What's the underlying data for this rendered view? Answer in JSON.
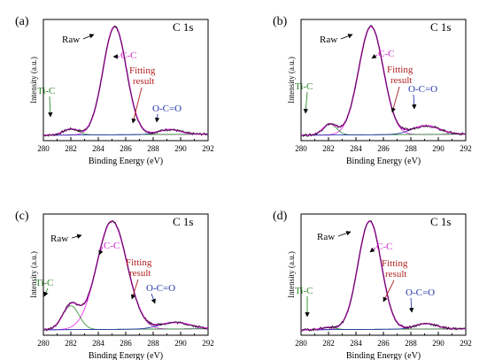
{
  "chart_data": [
    {
      "type": "line",
      "panel_label": "(a)",
      "title": "C 1s",
      "xlabel": "Binding Energy (eV)",
      "ylabel": "Intensity (a.u.)",
      "xlim": [
        280,
        292
      ],
      "xticks": [
        280,
        282,
        284,
        286,
        288,
        290,
        292
      ],
      "peaks": [
        {
          "name": "C-C",
          "center": 285.2,
          "height": 1.0,
          "sigma": 0.85
        },
        {
          "name": "Ti-C",
          "center": 282.0,
          "height": 0.055,
          "sigma": 0.55
        },
        {
          "name": "O-C=O",
          "center": 289.2,
          "height": 0.045,
          "sigma": 0.8
        }
      ],
      "annotations": [
        "Raw",
        "C-C",
        "Fitting result",
        "Ti-C",
        "O-C=O"
      ]
    },
    {
      "type": "line",
      "panel_label": "(b)",
      "title": "C 1s",
      "xlabel": "Binding Energy (eV)",
      "ylabel": "Intensity (a.u.)",
      "xlim": [
        280,
        292
      ],
      "xticks": [
        280,
        282,
        284,
        286,
        288,
        290,
        292
      ],
      "peaks": [
        {
          "name": "C-C",
          "center": 285.1,
          "height": 1.0,
          "sigma": 0.9
        },
        {
          "name": "Ti-C",
          "center": 282.1,
          "height": 0.1,
          "sigma": 0.5
        },
        {
          "name": "O-C=O",
          "center": 289.1,
          "height": 0.08,
          "sigma": 1.0
        }
      ],
      "annotations": [
        "Raw",
        "C-C",
        "Fitting result",
        "Ti-C",
        "O-C=O"
      ]
    },
    {
      "type": "line",
      "panel_label": "(c)",
      "title": "C 1s",
      "xlabel": "Binding Energy (eV)",
      "ylabel": "Intensity (a.u.)",
      "xlim": [
        280,
        292
      ],
      "xticks": [
        280,
        282,
        284,
        286,
        288,
        290,
        292
      ],
      "peaks": [
        {
          "name": "C-C",
          "center": 285.0,
          "height": 1.0,
          "sigma": 1.1
        },
        {
          "name": "Ti-C",
          "center": 282.0,
          "height": 0.22,
          "sigma": 0.6
        },
        {
          "name": "O-C=O",
          "center": 289.6,
          "height": 0.06,
          "sigma": 1.1
        }
      ],
      "annotations": [
        "Raw",
        "C-C",
        "Fitting result",
        "Ti-C",
        "O-C=O"
      ]
    },
    {
      "type": "line",
      "panel_label": "(d)",
      "title": "C 1s",
      "xlabel": "Binding Energy (eV)",
      "ylabel": "Intensity (a.u.)",
      "xlim": [
        280,
        292
      ],
      "xticks": [
        280,
        282,
        284,
        286,
        288,
        290,
        292
      ],
      "peaks": [
        {
          "name": "C-C",
          "center": 285.0,
          "height": 1.0,
          "sigma": 0.85
        },
        {
          "name": "Ti-C",
          "center": 282.0,
          "height": 0.02,
          "sigma": 0.5
        },
        {
          "name": "O-C=O",
          "center": 289.1,
          "height": 0.05,
          "sigma": 0.8
        }
      ],
      "annotations": [
        "Raw",
        "C-C",
        "Fitting result",
        "Ti-C",
        "O-C=O"
      ]
    }
  ],
  "colors": {
    "raw": "#111111",
    "fit": "#ee22ee",
    "cc_label": "#cc22cc",
    "tic": "#2a8a2a",
    "ocoo": "#2233aa",
    "fitting_label": "#b02020",
    "background_line": "#3a4abf",
    "axis": "#000000"
  }
}
